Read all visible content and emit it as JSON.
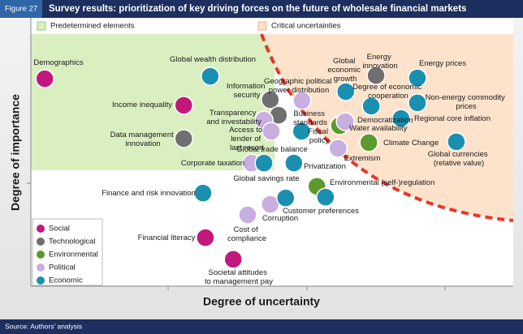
{
  "chart_data": {
    "type": "scatter",
    "figure_label": "Figure 27",
    "title": "Survey results: prioritization of key driving forces on the future of wholesale financial markets",
    "region_labels": [
      "Predetermined elements",
      "Critical uncertainties"
    ],
    "x_label": "Degree of uncertainty",
    "y_label": "Degree of importance",
    "source": "Source: Authors' analysis",
    "xlim": [
      0,
      100
    ],
    "ylim": [
      0,
      100
    ],
    "series": [
      {
        "name": "Social",
        "color": "#c2187c",
        "x": [
          2.9,
          31.8,
          36.3,
          42.1
        ],
        "y": [
          77.3,
          67.4,
          18.1,
          10.0
        ],
        "labels": [
          "Demographics",
          "Income inequality",
          "Financial literacy",
          "Societal attitudes to management pay"
        ]
      },
      {
        "name": "Technological",
        "color": "#6f6f6f",
        "x": [
          31.8,
          49.8,
          51.5,
          71.8
        ],
        "y": [
          55.0,
          69.5,
          63.7,
          78.5
        ],
        "labels": [
          "Data management innovation",
          "Information security",
          "Geographic political power distribution",
          "Energy innovation"
        ]
      },
      {
        "name": "Environmental",
        "color": "#5b9a2b",
        "x": [
          64.2,
          70.3,
          59.5
        ],
        "y": [
          59.8,
          53.5,
          37.2
        ],
        "labels": [
          "Water availability",
          "Climate Change",
          "Environmental (self-)regulation"
        ]
      },
      {
        "name": "Political",
        "color": "#c9aee0",
        "x": [
          48.5,
          50.0,
          56.4,
          65.4,
          63.9,
          45.9,
          45.1,
          49.8
        ],
        "y": [
          61.9,
          57.7,
          69.2,
          61.3,
          51.4,
          45.9,
          26.6,
          30.5
        ],
        "labels": [
          "Transparency and investability",
          "Access to lender of last resort",
          "Business standards",
          "Democratization",
          "Extremism",
          "Corporate taxation",
          "Cost of compliance",
          "Corruption"
        ]
      },
      {
        "name": "Economic",
        "color": "#1b8fb0",
        "x": [
          37.3,
          65.5,
          80.4,
          70.8,
          80.4,
          77.0,
          88.5,
          56.3,
          54.7,
          48.5,
          35.8,
          53.0,
          61.3
        ],
        "y": [
          78.2,
          72.5,
          77.6,
          67.1,
          68.3,
          62.5,
          53.8,
          57.7,
          45.9,
          45.9,
          34.7,
          32.9,
          33.2
        ],
        "labels": [
          "Global wealth distribution",
          "Global economic growth",
          "Energy prices",
          "Degree of economic cooperation",
          "Non-energy commodity prices",
          "Regional core inflation",
          "Global currencies (relative value)",
          "Fiscal policy",
          "Global trade balance",
          "Global savings rate",
          "Finance and risk innovation",
          "Customer preferences",
          "Privatization"
        ]
      }
    ]
  }
}
